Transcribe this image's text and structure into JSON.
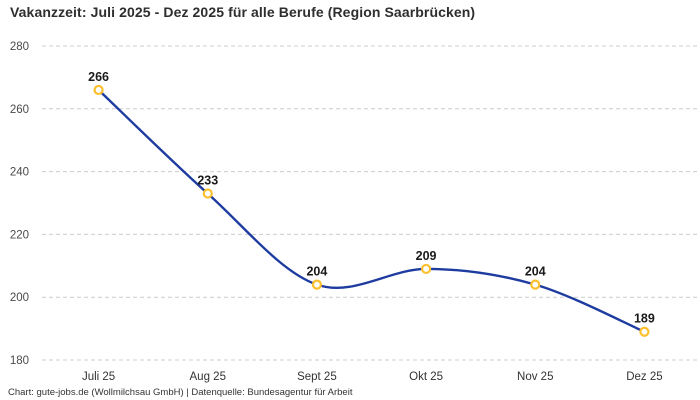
{
  "header": {
    "title": "Vakanzzeit: Juli 2025 - Dez 2025 für alle Berufe (Region Saarbrücken)"
  },
  "footer": {
    "attribution": "Chart: gute-jobs.de (Wollmilchsau GmbH) | Datenquelle: Bundesagentur für Arbeit"
  },
  "chart_data": {
    "type": "line",
    "title": "Vakanzzeit: Juli 2025 - Dez 2025 für alle Berufe (Region Saarbrücken)",
    "categories": [
      "Juli 25",
      "Aug 25",
      "Sept 25",
      "Okt 25",
      "Nov 25",
      "Dez 25"
    ],
    "values": [
      266,
      233,
      204,
      209,
      204,
      189
    ],
    "data_labels": [
      "266",
      "233",
      "204",
      "209",
      "204",
      "189"
    ],
    "xlabel": "",
    "ylabel": "",
    "ylim": [
      180,
      280
    ],
    "yticks": [
      180,
      200,
      220,
      240,
      260,
      280
    ],
    "grid": "horizontal-dashed",
    "legend_position": "none",
    "smooth_line": true,
    "colors": {
      "line": "#1e3ca0",
      "marker_ring": "#fcbf2d",
      "marker_fill": "#ffffff",
      "gridline": "#cccccc",
      "axis_text": "#4a4a4a"
    }
  }
}
